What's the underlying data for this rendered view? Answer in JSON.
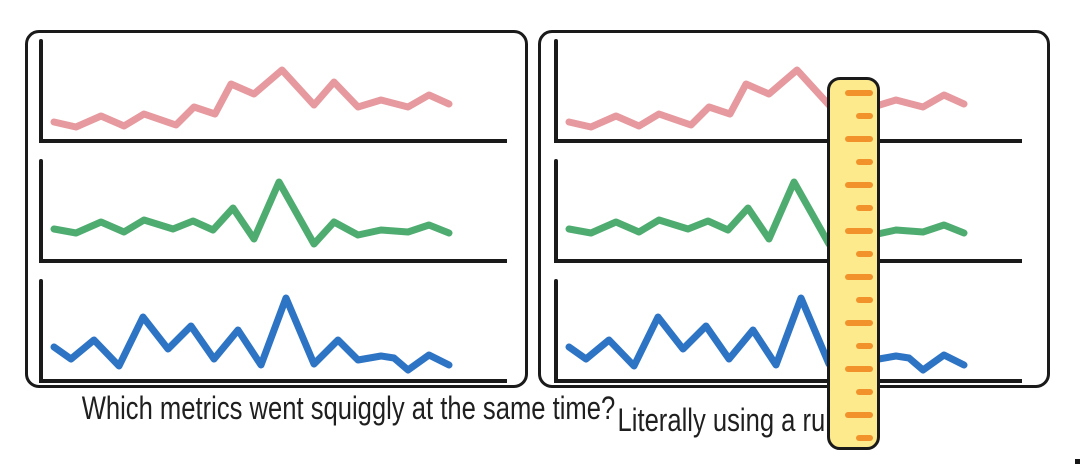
{
  "left_panel": {
    "caption": "Which metrics went squiggly at the same time?"
  },
  "right_panel": {
    "caption": "Literally using a ruler"
  },
  "chart_data": {
    "type": "line",
    "title": "",
    "xlabel": "",
    "ylabel": "",
    "layout": "two panels; each panel stacks the same three unlabeled sparkline charts (L-shaped axes, no ticks, no gridlines); right panel has a vertical ruler overlaid across all three charts",
    "axes": {
      "tick_labels": [],
      "gridlines": false,
      "value_scale": "0-100 estimated from sketch height above baseline"
    },
    "series": [
      {
        "name": "metric-top-pink",
        "color": "#E6999E",
        "points": [
          [
            15,
            17
          ],
          [
            37,
            12
          ],
          [
            62,
            23
          ],
          [
            85,
            13
          ],
          [
            105,
            25
          ],
          [
            137,
            14
          ],
          [
            155,
            32
          ],
          [
            176,
            25
          ],
          [
            192,
            55
          ],
          [
            215,
            45
          ],
          [
            243,
            69
          ],
          [
            275,
            34
          ],
          [
            295,
            57
          ],
          [
            319,
            32
          ],
          [
            342,
            39
          ],
          [
            369,
            32
          ],
          [
            390,
            44
          ],
          [
            410,
            35
          ]
        ]
      },
      {
        "name": "metric-middle-green",
        "color": "#4FAC71",
        "points": [
          [
            15,
            30
          ],
          [
            37,
            26
          ],
          [
            62,
            37
          ],
          [
            85,
            27
          ],
          [
            105,
            39
          ],
          [
            134,
            30
          ],
          [
            154,
            38
          ],
          [
            174,
            29
          ],
          [
            194,
            51
          ],
          [
            215,
            20
          ],
          [
            240,
            77
          ],
          [
            275,
            15
          ],
          [
            295,
            37
          ],
          [
            319,
            24
          ],
          [
            342,
            29
          ],
          [
            369,
            27
          ],
          [
            390,
            34
          ],
          [
            410,
            26
          ]
        ]
      },
      {
        "name": "metric-bottom-blue",
        "color": "#2E74C4",
        "points": [
          [
            15,
            32
          ],
          [
            32,
            20
          ],
          [
            55,
            39
          ],
          [
            80,
            13
          ],
          [
            104,
            62
          ],
          [
            129,
            30
          ],
          [
            152,
            53
          ],
          [
            175,
            20
          ],
          [
            199,
            49
          ],
          [
            222,
            14
          ],
          [
            247,
            81
          ],
          [
            275,
            15
          ],
          [
            299,
            39
          ],
          [
            319,
            19
          ],
          [
            342,
            23
          ],
          [
            355,
            21
          ],
          [
            369,
            9
          ],
          [
            390,
            24
          ],
          [
            410,
            14
          ]
        ]
      }
    ]
  },
  "ruler": {
    "fill": "#FCEA8D",
    "border": "#1A1A1A",
    "tick_color": "#F2922B",
    "tick_count": 16,
    "tick_step": 23,
    "long_len": 28,
    "short_len": 17
  },
  "colors": {
    "ink": "#1A1A1A",
    "background": "#FFFFFF",
    "caption_text": "#1F1F1F"
  }
}
